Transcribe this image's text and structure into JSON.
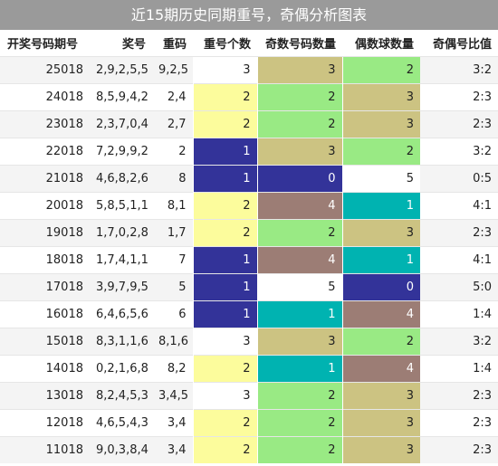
{
  "title": "近15期历史同期重号，奇偶分析图表",
  "columns": [
    "开奖号码期号",
    "奖号",
    "重码",
    "重号个数",
    "奇数号码数量",
    "偶数球数量",
    "奇偶号比值"
  ],
  "colors": {
    "white": "#ffffff",
    "lightyellow": "#fcfc9c",
    "navy": "#333399",
    "khaki": "#ccc382",
    "lightgreen": "#99ea84",
    "teal": "#00b3b1",
    "rosybrown": "#9c7d75",
    "title_bar": "#9a9a9a"
  },
  "rows": [
    {
      "issue": "25018",
      "numbers": "2,9,2,5,5",
      "repeat": "9,2,5",
      "count": "3",
      "odd": "3",
      "even": "2",
      "ratio": "3:2",
      "count_color": "white",
      "odd_color": "khaki",
      "even_color": "lightgreen"
    },
    {
      "issue": "24018",
      "numbers": "8,5,9,4,2",
      "repeat": "2,4",
      "count": "2",
      "odd": "2",
      "even": "3",
      "ratio": "2:3",
      "count_color": "lightyellow",
      "odd_color": "lightgreen",
      "even_color": "khaki"
    },
    {
      "issue": "23018",
      "numbers": "2,3,7,0,4",
      "repeat": "2,7",
      "count": "2",
      "odd": "2",
      "even": "3",
      "ratio": "2:3",
      "count_color": "lightyellow",
      "odd_color": "lightgreen",
      "even_color": "khaki"
    },
    {
      "issue": "22018",
      "numbers": "7,2,9,9,2",
      "repeat": "2",
      "count": "1",
      "odd": "3",
      "even": "2",
      "ratio": "3:2",
      "count_color": "navy",
      "odd_color": "khaki",
      "even_color": "lightgreen"
    },
    {
      "issue": "21018",
      "numbers": "4,6,8,2,6",
      "repeat": "8",
      "count": "1",
      "odd": "0",
      "even": "5",
      "ratio": "0:5",
      "count_color": "navy",
      "odd_color": "navy",
      "even_color": "white"
    },
    {
      "issue": "20018",
      "numbers": "5,8,5,1,1",
      "repeat": "8,1",
      "count": "2",
      "odd": "4",
      "even": "1",
      "ratio": "4:1",
      "count_color": "lightyellow",
      "odd_color": "rosybrown",
      "even_color": "teal"
    },
    {
      "issue": "19018",
      "numbers": "1,7,0,2,8",
      "repeat": "1,7",
      "count": "2",
      "odd": "2",
      "even": "3",
      "ratio": "2:3",
      "count_color": "lightyellow",
      "odd_color": "lightgreen",
      "even_color": "khaki"
    },
    {
      "issue": "18018",
      "numbers": "1,7,4,1,1",
      "repeat": "7",
      "count": "1",
      "odd": "4",
      "even": "1",
      "ratio": "4:1",
      "count_color": "navy",
      "odd_color": "rosybrown",
      "even_color": "teal"
    },
    {
      "issue": "17018",
      "numbers": "3,9,7,9,5",
      "repeat": "5",
      "count": "1",
      "odd": "5",
      "even": "0",
      "ratio": "5:0",
      "count_color": "navy",
      "odd_color": "white",
      "even_color": "navy"
    },
    {
      "issue": "16018",
      "numbers": "6,4,6,5,6",
      "repeat": "6",
      "count": "1",
      "odd": "1",
      "even": "4",
      "ratio": "1:4",
      "count_color": "navy",
      "odd_color": "teal",
      "even_color": "rosybrown"
    },
    {
      "issue": "15018",
      "numbers": "8,3,1,1,6",
      "repeat": "8,1,6",
      "count": "3",
      "odd": "3",
      "even": "2",
      "ratio": "3:2",
      "count_color": "white",
      "odd_color": "khaki",
      "even_color": "lightgreen"
    },
    {
      "issue": "14018",
      "numbers": "0,2,1,6,8",
      "repeat": "8,2",
      "count": "2",
      "odd": "1",
      "even": "4",
      "ratio": "1:4",
      "count_color": "lightyellow",
      "odd_color": "teal",
      "even_color": "rosybrown"
    },
    {
      "issue": "13018",
      "numbers": "8,2,4,5,3",
      "repeat": "3,4,5",
      "count": "3",
      "odd": "2",
      "even": "3",
      "ratio": "2:3",
      "count_color": "white",
      "odd_color": "lightgreen",
      "even_color": "khaki"
    },
    {
      "issue": "12018",
      "numbers": "4,6,5,4,3",
      "repeat": "3,4",
      "count": "2",
      "odd": "2",
      "even": "3",
      "ratio": "2:3",
      "count_color": "lightyellow",
      "odd_color": "lightgreen",
      "even_color": "khaki"
    },
    {
      "issue": "11018",
      "numbers": "9,0,3,8,4",
      "repeat": "3,4",
      "count": "2",
      "odd": "2",
      "even": "3",
      "ratio": "2:3",
      "count_color": "lightyellow",
      "odd_color": "lightgreen",
      "even_color": "khaki"
    }
  ]
}
